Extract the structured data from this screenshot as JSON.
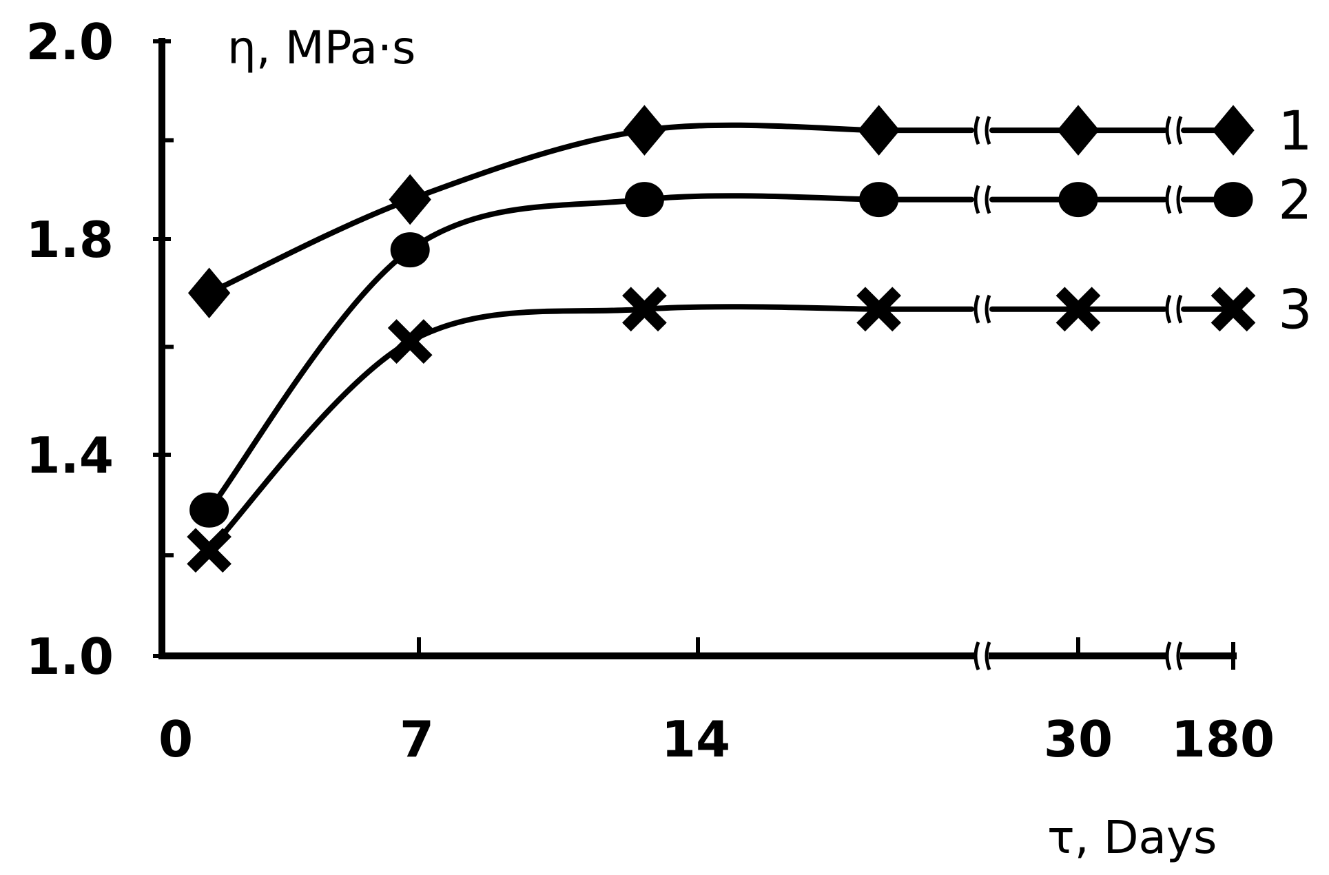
{
  "chart_data": {
    "type": "line",
    "ylabel": "η, MPa·s",
    "xlabel": "τ, Days",
    "ylim": [
      1.0,
      2.0
    ],
    "y_ticks": [
      "2.0",
      "1.8",
      "1.4",
      "1.0"
    ],
    "x_tick_labels": [
      "0",
      "7",
      "14",
      "30",
      "180"
    ],
    "x": [
      1,
      7,
      14,
      21,
      30,
      180
    ],
    "axis_breaks": "between 21 and 30, and between 30 and 180",
    "grid": false,
    "legend": "curve labels at right end",
    "series": [
      {
        "name": "1",
        "marker": "diamond",
        "values": [
          1.7,
          1.84,
          1.91,
          1.91,
          1.91,
          1.91
        ]
      },
      {
        "name": "2",
        "marker": "circle",
        "values": [
          1.29,
          1.78,
          1.84,
          1.84,
          1.84,
          1.84
        ]
      },
      {
        "name": "3",
        "marker": "cross",
        "values": [
          1.21,
          1.61,
          1.67,
          1.67,
          1.67,
          1.67
        ]
      }
    ]
  }
}
